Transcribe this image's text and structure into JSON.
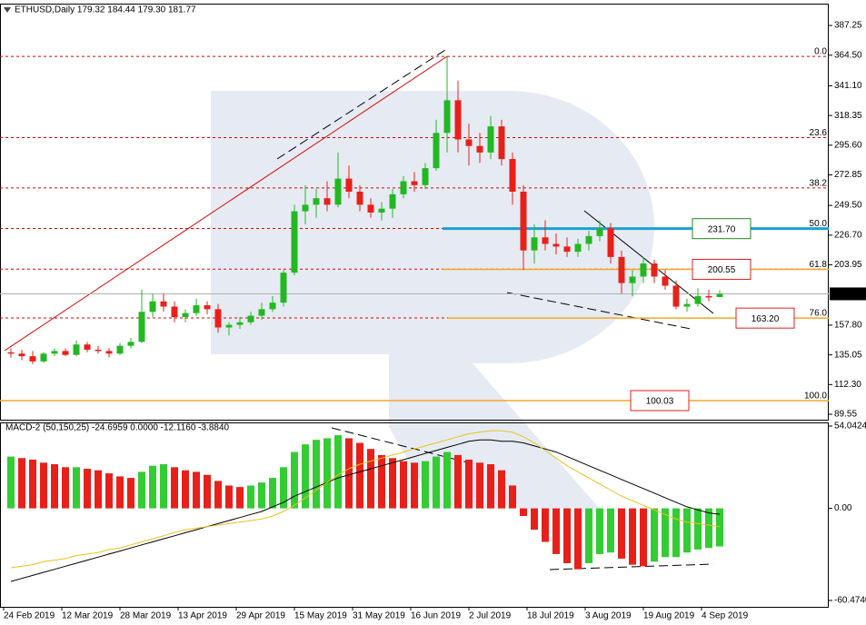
{
  "chart_data": [
    {
      "type": "candlestick",
      "title": "ETHUSD,Daily  179.32 184.44 179.30 181.77",
      "x": [
        "2019-02-26",
        "2019-03-01",
        "2019-03-04",
        "2019-03-07",
        "2019-03-10",
        "2019-03-13",
        "2019-03-16",
        "2019-03-19",
        "2019-03-22",
        "2019-03-25",
        "2019-03-28",
        "2019-03-31",
        "2019-04-03",
        "2019-04-06",
        "2019-04-09",
        "2019-04-12",
        "2019-04-15",
        "2019-04-18",
        "2019-04-21",
        "2019-04-24",
        "2019-04-27",
        "2019-04-30",
        "2019-05-03",
        "2019-05-06",
        "2019-05-09",
        "2019-05-12",
        "2019-05-15",
        "2019-05-18",
        "2019-05-21",
        "2019-05-24",
        "2019-05-27",
        "2019-05-30",
        "2019-06-02",
        "2019-06-05",
        "2019-06-08",
        "2019-06-11",
        "2019-06-14",
        "2019-06-17",
        "2019-06-20",
        "2019-06-23",
        "2019-06-26",
        "2019-06-29",
        "2019-07-02",
        "2019-07-05",
        "2019-07-08",
        "2019-07-11",
        "2019-07-14",
        "2019-07-17",
        "2019-07-20",
        "2019-07-23",
        "2019-07-26",
        "2019-07-29",
        "2019-08-01",
        "2019-08-04",
        "2019-08-07",
        "2019-08-10",
        "2019-08-13",
        "2019-08-16",
        "2019-08-19",
        "2019-08-22",
        "2019-08-25",
        "2019-08-28",
        "2019-08-31",
        "2019-09-03",
        "2019-09-06",
        "2019-09-09"
      ],
      "open": [
        137,
        136,
        134,
        130,
        136,
        138,
        135,
        143,
        139,
        138,
        136,
        142,
        145,
        168,
        176,
        172,
        164,
        167,
        173,
        170,
        156,
        158,
        160,
        165,
        170,
        175,
        198,
        245,
        250,
        255,
        250,
        270,
        260,
        250,
        244,
        247,
        258,
        268,
        265,
        278,
        305,
        330,
        300,
        295,
        290,
        310,
        285,
        260,
        215,
        225,
        220,
        218,
        214,
        220,
        226,
        232,
        210,
        190,
        195,
        205,
        195,
        188,
        172,
        174,
        180,
        179.32
      ],
      "high": [
        140,
        139,
        138,
        137,
        140,
        140,
        146,
        145,
        142,
        140,
        144,
        148,
        185,
        182,
        182,
        176,
        170,
        178,
        176,
        174,
        160,
        164,
        168,
        175,
        180,
        200,
        250,
        265,
        262,
        268,
        290,
        280,
        265,
        255,
        252,
        262,
        272,
        275,
        282,
        315,
        364,
        345,
        312,
        305,
        318,
        315,
        290,
        265,
        235,
        238,
        228,
        225,
        224,
        230,
        238,
        236,
        215,
        200,
        210,
        208,
        200,
        192,
        178,
        186,
        185,
        184.44
      ],
      "low": [
        133,
        131,
        128,
        129,
        134,
        134,
        134,
        137,
        136,
        133,
        135,
        140,
        144,
        164,
        168,
        160,
        160,
        165,
        166,
        152,
        150,
        155,
        158,
        162,
        168,
        172,
        196,
        235,
        240,
        245,
        248,
        255,
        245,
        240,
        238,
        240,
        255,
        260,
        262,
        276,
        290,
        290,
        280,
        282,
        285,
        280,
        250,
        200,
        205,
        215,
        212,
        210,
        210,
        215,
        222,
        205,
        182,
        180,
        190,
        190,
        185,
        170,
        168,
        172,
        176,
        179.3
      ],
      "close": [
        136,
        134,
        130,
        136,
        138,
        135,
        143,
        139,
        138,
        136,
        142,
        145,
        168,
        176,
        172,
        164,
        167,
        173,
        170,
        156,
        158,
        160,
        165,
        170,
        175,
        198,
        245,
        250,
        255,
        250,
        270,
        260,
        250,
        244,
        247,
        258,
        268,
        265,
        278,
        305,
        330,
        300,
        295,
        290,
        310,
        285,
        260,
        215,
        225,
        220,
        218,
        214,
        220,
        226,
        232,
        210,
        190,
        195,
        205,
        195,
        188,
        172,
        174,
        180,
        179,
        181.77
      ],
      "up_color": "#22b822",
      "down_color": "#e8201a",
      "xlim": [
        "2019-02-23",
        "2019-10-09"
      ],
      "ylim": [
        85.4,
        403.3
      ],
      "yticks": [
        387.25,
        {
          "value": 364.5,
          "label": "364.50"
        },
        {
          "value": 341.1,
          "label": "341.10"
        },
        318.35,
        {
          "value": 295.6,
          "label": "295.60"
        },
        272.85,
        {
          "value": 249.5,
          "label": "249.50"
        },
        {
          "value": 226.7,
          "label": "226.70"
        },
        203.95,
        {
          "value": 157.8,
          "label": "157.80"
        },
        135.05,
        {
          "value": 112.3,
          "label": "112.30"
        },
        89.55
      ],
      "fib_color": "#e00000",
      "fib_levels": [
        {
          "price": 363.6,
          "label": "0.0"
        },
        {
          "price": 301.4,
          "label": "23.6"
        },
        {
          "price": 262.9,
          "label": "38.2"
        },
        {
          "price": 231.8,
          "label": "50.0"
        },
        {
          "price": 200.7,
          "label": "61.8"
        },
        {
          "price": 163.3,
          "label": "76.0"
        },
        {
          "price": 100.0,
          "label": "100.0"
        }
      ],
      "levels": [
        {
          "value": 231.7,
          "label": "231.70",
          "color": "#1e8a1e",
          "line_color": "#1aa0d8"
        },
        {
          "value": 200.55,
          "label": "200.55",
          "color": "#e02020",
          "line_color": "#f5a623"
        },
        {
          "value": 163.2,
          "label": "163.20",
          "color": "#e02020",
          "line_color": "#f5a623"
        },
        {
          "value": 100.03,
          "label": "100.03",
          "color": "#e02020",
          "line_color": "#f5a623"
        }
      ]
    },
    {
      "type": "macd",
      "title": "MACD-2 (50,150,25) -24.6959 0.0000 -12.1160 -3.8840",
      "x": [
        "2019-02-26",
        "2019-03-01",
        "2019-03-04",
        "2019-03-07",
        "2019-03-10",
        "2019-03-13",
        "2019-03-16",
        "2019-03-19",
        "2019-03-22",
        "2019-03-25",
        "2019-03-28",
        "2019-03-31",
        "2019-04-03",
        "2019-04-06",
        "2019-04-09",
        "2019-04-12",
        "2019-04-15",
        "2019-04-18",
        "2019-04-21",
        "2019-04-24",
        "2019-04-27",
        "2019-04-30",
        "2019-05-03",
        "2019-05-06",
        "2019-05-09",
        "2019-05-12",
        "2019-05-15",
        "2019-05-18",
        "2019-05-21",
        "2019-05-24",
        "2019-05-27",
        "2019-05-30",
        "2019-06-02",
        "2019-06-05",
        "2019-06-08",
        "2019-06-11",
        "2019-06-14",
        "2019-06-17",
        "2019-06-20",
        "2019-06-23",
        "2019-06-26",
        "2019-06-29",
        "2019-07-02",
        "2019-07-05",
        "2019-07-08",
        "2019-07-11",
        "2019-07-14",
        "2019-07-17",
        "2019-07-20",
        "2019-07-23",
        "2019-07-26",
        "2019-07-29",
        "2019-08-01",
        "2019-08-04",
        "2019-08-07",
        "2019-08-10",
        "2019-08-13",
        "2019-08-16",
        "2019-08-19",
        "2019-08-22",
        "2019-08-25",
        "2019-08-28",
        "2019-08-31",
        "2019-09-03",
        "2019-09-06",
        "2019-09-09"
      ],
      "histogram": [
        34,
        33,
        32,
        30,
        29,
        27,
        27,
        26,
        25,
        23,
        21,
        20,
        24,
        28,
        29,
        27,
        25,
        24,
        22,
        18,
        15,
        14,
        15,
        17,
        20,
        27,
        37,
        42,
        45,
        46,
        48,
        46,
        43,
        39,
        35,
        33,
        31,
        30,
        31,
        34,
        37,
        35,
        32,
        30,
        29,
        25,
        15,
        -5,
        -14,
        -22,
        -30,
        -36,
        -40,
        -36,
        -30,
        -29,
        -33,
        -37,
        -38,
        -35,
        -32,
        -32,
        -29,
        -27,
        -26,
        -25
      ],
      "up_color": "#33cc33",
      "down_color": "#e8201a",
      "lines": [
        {
          "color": "#000000",
          "values": [
            -48,
            -46,
            -44,
            -42,
            -40,
            -38,
            -36,
            -34,
            -32,
            -30,
            -28,
            -26,
            -24,
            -22,
            -20,
            -18,
            -16,
            -14,
            -12,
            -10,
            -8,
            -6,
            -4,
            -2,
            1,
            4,
            8,
            11,
            14,
            17,
            20,
            22,
            24,
            26,
            28,
            30,
            32,
            34,
            36,
            38,
            40,
            42,
            44,
            45,
            45,
            44,
            44,
            43,
            41,
            39,
            37,
            34,
            31,
            28,
            25,
            22,
            19,
            16,
            13,
            10,
            7,
            4,
            1,
            -1,
            -3,
            -3.9
          ]
        },
        {
          "color": "#e8c31a",
          "values": [
            -39,
            -38,
            -37,
            -35,
            -34,
            -33,
            -31,
            -30,
            -29,
            -27,
            -26,
            -24,
            -22,
            -20,
            -18,
            -16,
            -14,
            -13,
            -12,
            -11,
            -10,
            -9,
            -8,
            -7,
            -5,
            -2,
            2,
            7,
            12,
            17,
            22,
            26,
            29,
            31,
            33,
            35,
            37,
            39,
            41,
            43,
            45,
            47,
            49,
            50,
            51,
            51,
            50,
            47,
            43,
            38,
            33,
            28,
            24,
            20,
            16,
            12,
            8,
            5,
            2,
            -1,
            -4,
            -7,
            -9,
            -10,
            -11,
            -12.1
          ]
        }
      ],
      "xlim": [
        "2019-02-23",
        "2019-10-09"
      ],
      "ylim": [
        -64.65,
        55.83
      ],
      "yticks": [
        54.0424,
        {
          "value": 0,
          "label": "0.00"
        },
        {
          "value": -60.474,
          "label": "-60.4740"
        }
      ],
      "xticks": [
        {
          "value": "2019-02-24",
          "label": "24 Feb 2019"
        },
        {
          "value": "2019-03-12",
          "label": "12 Mar 2019"
        },
        {
          "value": "2019-03-28",
          "label": "28 Mar 2019"
        },
        {
          "value": "2019-04-13",
          "label": "13 Apr 2019"
        },
        {
          "value": "2019-04-29",
          "label": "29 Apr 2019"
        },
        {
          "value": "2019-05-15",
          "label": "15 May 2019"
        },
        {
          "value": "2019-05-31",
          "label": "31 May 2019"
        },
        {
          "value": "2019-06-16",
          "label": "16 Jun 2019"
        },
        {
          "value": "2019-07-02",
          "label": "2 Jul 2019"
        },
        {
          "value": "2019-07-18",
          "label": "18 Jul 2019"
        },
        {
          "value": "2019-08-03",
          "label": "3 Aug 2019"
        },
        {
          "value": "2019-08-19",
          "label": "19 Aug 2019"
        },
        {
          "value": "2019-09-04",
          "label": "4 Sep 2019"
        }
      ]
    }
  ]
}
